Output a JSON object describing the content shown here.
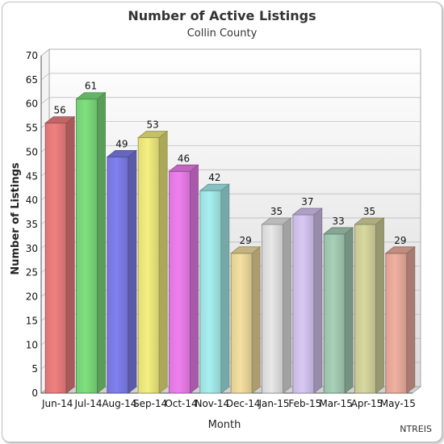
{
  "chart_data": {
    "type": "bar",
    "title": "Number of Active Listings",
    "subtitle": "Collin County",
    "xlabel": "Month",
    "ylabel": "Number of Listings",
    "source": "NTREIS",
    "categories": [
      "Jun-14",
      "Jul-14",
      "Aug-14",
      "Sep-14",
      "Oct-14",
      "Nov-14",
      "Dec-14",
      "Jan-15",
      "Feb-15",
      "Mar-15",
      "Apr-15",
      "May-15"
    ],
    "values": [
      56,
      61,
      49,
      53,
      46,
      42,
      29,
      35,
      37,
      33,
      35,
      29
    ],
    "ylim": [
      0,
      70
    ],
    "yticks": [
      0,
      5,
      10,
      15,
      20,
      25,
      30,
      35,
      40,
      45,
      50,
      55,
      60,
      65,
      70
    ],
    "grid": true,
    "legend": "none",
    "bar_colors": [
      "#f08080",
      "#7fe07f",
      "#8080f0",
      "#f5f080",
      "#f080f0",
      "#a8f0f0",
      "#f5e0a0",
      "#e8e8e8",
      "#d8c8f5",
      "#a8d0b8",
      "#d8d8a0",
      "#f0b0a0"
    ]
  }
}
